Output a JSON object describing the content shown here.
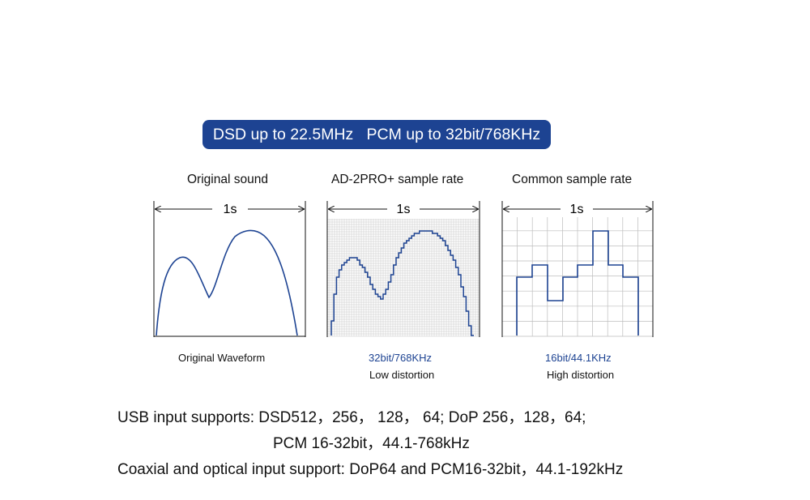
{
  "banner": {
    "text": "DSD up to 22.5MHz   PCM up to 32bit/768KHz"
  },
  "panels": [
    {
      "title": "Original sound",
      "span_label": "1s",
      "caption_1": "Original Waveform",
      "caption_2": ""
    },
    {
      "title": "AD-2PRO+ sample rate",
      "span_label": "1s",
      "caption_1": "32bit/768KHz",
      "caption_2": "Low distortion"
    },
    {
      "title": "Common sample rate",
      "span_label": "1s",
      "caption_1": "16bit/44.1KHz",
      "caption_2": "High distortion"
    }
  ],
  "info": {
    "line_1": "USB input supports: DSD512，256， 128， 64; DoP 256，128，64;",
    "line_2": "PCM 16-32bit，44.1-768kHz",
    "line_3": "Coaxial and optical input support: DoP64 and PCM16-32bit，44.1-192kHz"
  },
  "colors": {
    "banner": "#1d4392",
    "waveform": "#1d4392",
    "caption_accent": "#1d4392"
  }
}
